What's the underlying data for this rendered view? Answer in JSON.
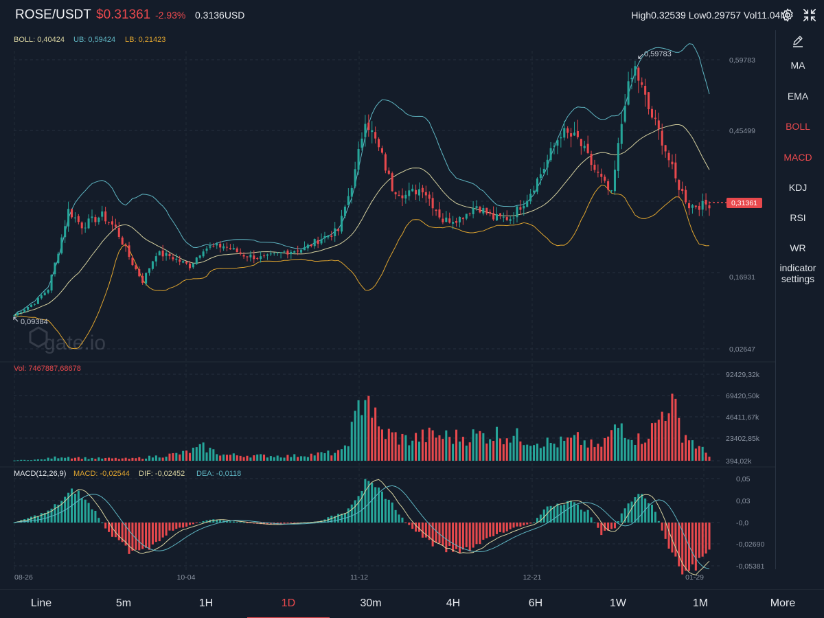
{
  "header": {
    "pair": "ROSE/USDT",
    "price": "$0.31361",
    "change": "-2.93%",
    "usd_price": "0.3136USD",
    "high": "High0.32539",
    "low": "Low0.29757",
    "vol": "Vol11.04M",
    "settings_icon": "gear-icon",
    "fullscreen_icon": "collapse-arrows-icon"
  },
  "boll_legend": {
    "boll": "BOLL: 0,40424",
    "ub": "UB: 0,59424",
    "lb": "LB: 0,21423"
  },
  "vol_legend": "Vol: 7467887,68678",
  "macd_legend": {
    "params": "MACD(12,26,9)",
    "macd": "MACD: -0,02544",
    "dif": "DIF: -0,02452",
    "dea": "DEA: -0,0118"
  },
  "price_markers": {
    "high": "0,59783",
    "low": "0,09384",
    "last": "0,31361"
  },
  "colors": {
    "up": "#26a69a",
    "down": "#e8494d",
    "upper_band": "#5fb6c3",
    "middle_band": "#d7d2a0",
    "lower_band": "#e0a52f",
    "dif": "#d7d2a0",
    "dea": "#5fb6c3"
  },
  "chart_data": {
    "type": "candlestick",
    "price_axis": [
      "0,59783",
      "0,45499",
      "0,16931",
      "0,02647"
    ],
    "volume_axis": [
      "92429,32k",
      "69420,50k",
      "46411,67k",
      "23402,85k",
      "394,02k"
    ],
    "macd_axis": [
      "0,05",
      "0,03",
      "-0,0",
      "-0,02690",
      "-0,05381"
    ],
    "x_labels": [
      "08-26",
      "10-04",
      "11-12",
      "12-21",
      "01-29"
    ],
    "price_range": [
      0.0,
      0.65
    ],
    "volume_range": [
      0,
      100000
    ],
    "macd_range": [
      -0.06,
      0.06
    ],
    "close_anchors": [
      [
        0,
        0.093
      ],
      [
        6,
        0.118
      ],
      [
        10,
        0.145
      ],
      [
        13,
        0.22
      ],
      [
        16,
        0.3
      ],
      [
        20,
        0.27
      ],
      [
        26,
        0.29
      ],
      [
        30,
        0.265
      ],
      [
        35,
        0.195
      ],
      [
        38,
        0.16
      ],
      [
        42,
        0.215
      ],
      [
        46,
        0.21
      ],
      [
        52,
        0.19
      ],
      [
        56,
        0.225
      ],
      [
        62,
        0.23
      ],
      [
        68,
        0.212
      ],
      [
        74,
        0.205
      ],
      [
        80,
        0.218
      ],
      [
        86,
        0.225
      ],
      [
        91,
        0.245
      ],
      [
        96,
        0.26
      ],
      [
        101,
        0.375
      ],
      [
        104,
        0.485
      ],
      [
        109,
        0.405
      ],
      [
        112,
        0.345
      ],
      [
        116,
        0.33
      ],
      [
        121,
        0.345
      ],
      [
        127,
        0.28
      ],
      [
        132,
        0.285
      ],
      [
        137,
        0.31
      ],
      [
        142,
        0.285
      ],
      [
        147,
        0.285
      ],
      [
        152,
        0.325
      ],
      [
        157,
        0.385
      ],
      [
        162,
        0.455
      ],
      [
        167,
        0.44
      ],
      [
        172,
        0.38
      ],
      [
        177,
        0.33
      ],
      [
        181,
        0.52
      ],
      [
        184,
        0.58
      ],
      [
        188,
        0.5
      ],
      [
        192,
        0.44
      ],
      [
        196,
        0.36
      ],
      [
        200,
        0.31
      ],
      [
        204,
        0.31
      ],
      [
        206,
        0.313
      ]
    ],
    "volume_anchors": [
      [
        0,
        500
      ],
      [
        8,
        1500
      ],
      [
        14,
        5000
      ],
      [
        22,
        3000
      ],
      [
        35,
        2500
      ],
      [
        44,
        6000
      ],
      [
        50,
        9000
      ],
      [
        56,
        16000
      ],
      [
        62,
        7000
      ],
      [
        72,
        6000
      ],
      [
        82,
        5500
      ],
      [
        90,
        8000
      ],
      [
        97,
        10000
      ],
      [
        101,
        45000
      ],
      [
        104,
        90000
      ],
      [
        108,
        35000
      ],
      [
        116,
        25000
      ],
      [
        124,
        30000
      ],
      [
        130,
        28000
      ],
      [
        137,
        30000
      ],
      [
        144,
        32000
      ],
      [
        152,
        26000
      ],
      [
        160,
        20000
      ],
      [
        167,
        25000
      ],
      [
        173,
        15000
      ],
      [
        180,
        44000
      ],
      [
        185,
        25000
      ],
      [
        190,
        40000
      ],
      [
        194,
        75000
      ],
      [
        198,
        35000
      ],
      [
        203,
        15000
      ],
      [
        206,
        7000
      ]
    ],
    "macd_anchors": [
      [
        0,
        0
      ],
      [
        10,
        0.01
      ],
      [
        18,
        0.03
      ],
      [
        24,
        0.01
      ],
      [
        28,
        -0.01
      ],
      [
        34,
        -0.025
      ],
      [
        40,
        -0.022
      ],
      [
        46,
        -0.008
      ],
      [
        58,
        0.003
      ],
      [
        75,
        -0.002
      ],
      [
        90,
        0.001
      ],
      [
        98,
        0.01
      ],
      [
        104,
        0.035
      ],
      [
        110,
        0.025
      ],
      [
        116,
        0.0
      ],
      [
        124,
        -0.02
      ],
      [
        132,
        -0.028
      ],
      [
        140,
        -0.015
      ],
      [
        148,
        -0.005
      ],
      [
        154,
        0.0
      ],
      [
        158,
        0.015
      ],
      [
        164,
        0.02
      ],
      [
        170,
        0.01
      ],
      [
        174,
        -0.01
      ],
      [
        178,
        -0.005
      ],
      [
        182,
        0.02
      ],
      [
        186,
        0.028
      ],
      [
        190,
        0.01
      ],
      [
        194,
        -0.025
      ],
      [
        198,
        -0.045
      ],
      [
        202,
        -0.04
      ],
      [
        206,
        -0.025
      ]
    ]
  },
  "indicators": [
    "MA",
    "EMA",
    "BOLL",
    "MACD",
    "KDJ",
    "RSI",
    "WR"
  ],
  "active_indicators": [
    "BOLL",
    "MACD"
  ],
  "indicator_settings": [
    "indicator",
    "settings"
  ],
  "edit_icon": "pencil-icon",
  "timeframes": [
    "Line",
    "5m",
    "1H",
    "1D",
    "30m",
    "4H",
    "6H",
    "1W",
    "1M",
    "More"
  ],
  "active_timeframe": "1D",
  "watermark": "gate.io"
}
